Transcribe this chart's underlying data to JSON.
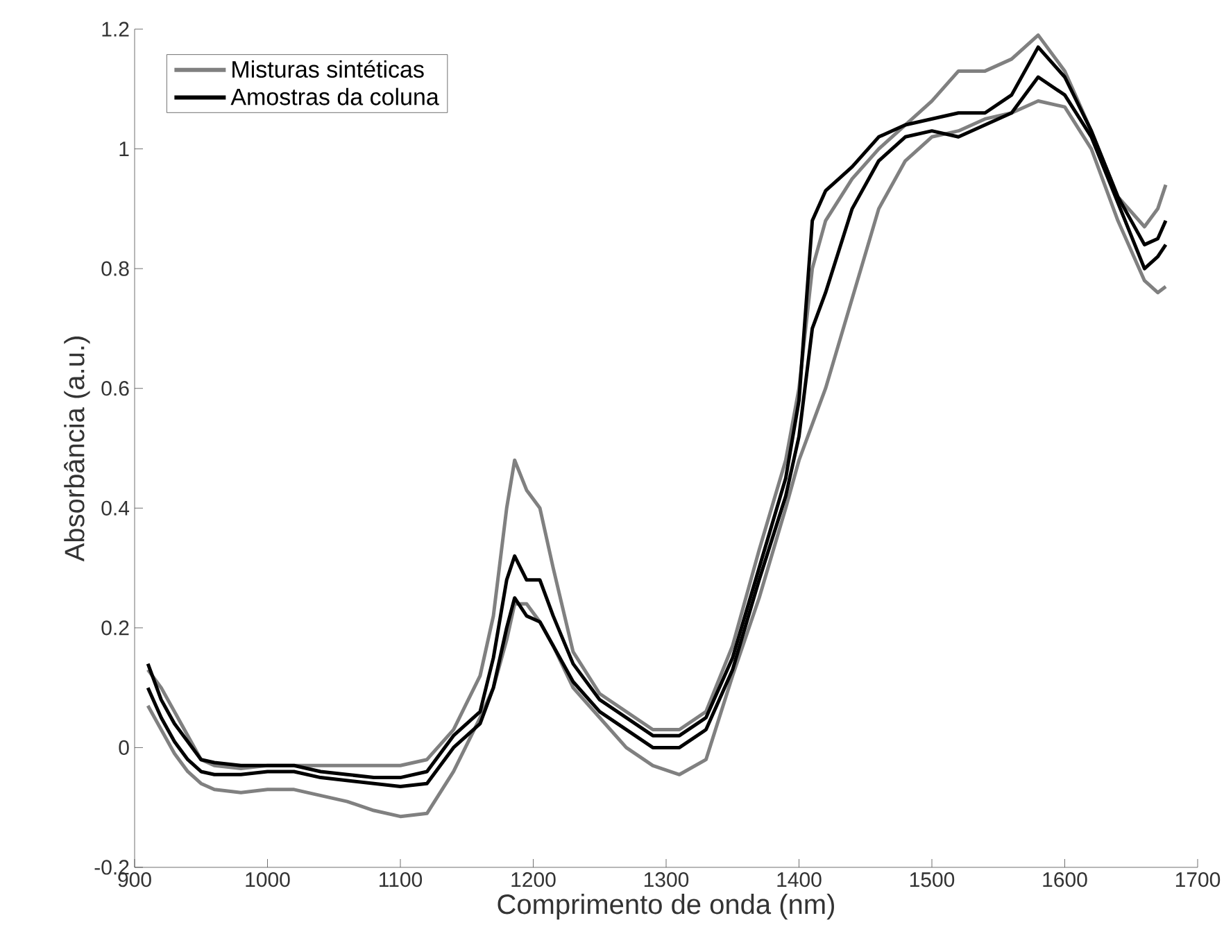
{
  "chart_data": {
    "type": "line",
    "xlabel": "Comprimento de onda (nm)",
    "ylabel": "Absorbância (a.u.)",
    "x": [
      910,
      920,
      930,
      940,
      950,
      960,
      980,
      1000,
      1020,
      1040,
      1060,
      1080,
      1100,
      1120,
      1140,
      1160,
      1170,
      1180,
      1186,
      1195,
      1205,
      1215,
      1230,
      1250,
      1270,
      1290,
      1310,
      1330,
      1350,
      1370,
      1390,
      1400,
      1410,
      1420,
      1440,
      1460,
      1480,
      1500,
      1520,
      1540,
      1560,
      1580,
      1600,
      1620,
      1640,
      1660,
      1670,
      1676
    ],
    "series": [
      {
        "name": "Misturas sintéticas",
        "color": "#808080",
        "values": [
          0.13,
          0.1,
          0.06,
          0.02,
          -0.02,
          -0.03,
          -0.035,
          -0.03,
          -0.03,
          -0.03,
          -0.03,
          -0.03,
          -0.03,
          -0.02,
          0.03,
          0.12,
          0.22,
          0.4,
          0.48,
          0.43,
          0.4,
          0.3,
          0.16,
          0.09,
          0.06,
          0.03,
          0.03,
          0.06,
          0.17,
          0.33,
          0.48,
          0.6,
          0.8,
          0.88,
          0.95,
          1.0,
          1.04,
          1.08,
          1.13,
          1.13,
          1.15,
          1.19,
          1.13,
          1.03,
          0.92,
          0.87,
          0.9,
          0.94
        ]
      },
      {
        "color": "#808080",
        "values": [
          0.07,
          0.03,
          -0.01,
          -0.04,
          -0.06,
          -0.07,
          -0.075,
          -0.07,
          -0.07,
          -0.08,
          -0.09,
          -0.105,
          -0.115,
          -0.11,
          -0.04,
          0.05,
          0.1,
          0.18,
          0.24,
          0.24,
          0.21,
          0.17,
          0.1,
          0.05,
          0.0,
          -0.03,
          -0.045,
          -0.02,
          0.12,
          0.25,
          0.4,
          0.48,
          0.54,
          0.6,
          0.75,
          0.9,
          0.98,
          1.02,
          1.03,
          1.05,
          1.06,
          1.08,
          1.07,
          1.0,
          0.88,
          0.78,
          0.76,
          0.77
        ]
      },
      {
        "name": "Amostras da coluna",
        "color": "#000000",
        "values": [
          0.14,
          0.08,
          0.04,
          0.01,
          -0.02,
          -0.025,
          -0.03,
          -0.03,
          -0.03,
          -0.04,
          -0.045,
          -0.05,
          -0.05,
          -0.04,
          0.02,
          0.06,
          0.15,
          0.28,
          0.32,
          0.28,
          0.28,
          0.22,
          0.14,
          0.08,
          0.05,
          0.02,
          0.02,
          0.05,
          0.15,
          0.3,
          0.45,
          0.58,
          0.88,
          0.93,
          0.97,
          1.02,
          1.04,
          1.05,
          1.06,
          1.06,
          1.09,
          1.17,
          1.12,
          1.03,
          0.92,
          0.84,
          0.85,
          0.88
        ]
      },
      {
        "color": "#000000",
        "values": [
          0.1,
          0.05,
          0.01,
          -0.02,
          -0.04,
          -0.045,
          -0.045,
          -0.04,
          -0.04,
          -0.05,
          -0.055,
          -0.06,
          -0.065,
          -0.06,
          0.0,
          0.04,
          0.1,
          0.2,
          0.25,
          0.22,
          0.21,
          0.17,
          0.11,
          0.06,
          0.03,
          0.0,
          0.0,
          0.03,
          0.13,
          0.28,
          0.42,
          0.52,
          0.7,
          0.76,
          0.9,
          0.98,
          1.02,
          1.03,
          1.02,
          1.04,
          1.06,
          1.12,
          1.09,
          1.02,
          0.91,
          0.8,
          0.82,
          0.84
        ]
      }
    ],
    "xlim": [
      900,
      1700
    ],
    "xticks": [
      900,
      1000,
      1100,
      1200,
      1300,
      1400,
      1500,
      1600,
      1700
    ],
    "ylim": [
      -0.2,
      1.2
    ],
    "yticks": [
      -0.2,
      0,
      0.2,
      0.4,
      0.6,
      0.8,
      1,
      1.2
    ],
    "grid": false,
    "legend": "top left",
    "marker": "none",
    "line_style": "solid"
  }
}
